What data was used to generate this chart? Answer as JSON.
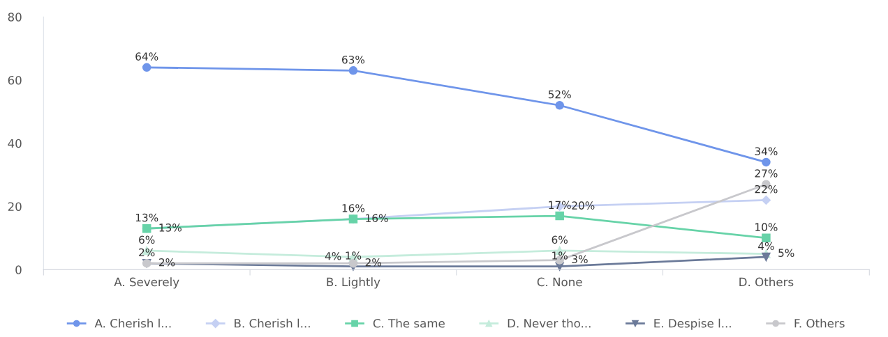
{
  "chart_data": {
    "type": "line",
    "categories": [
      "A. Severely",
      "B. Lightly",
      "C. None",
      "D. Others"
    ],
    "ylim": [
      0,
      80
    ],
    "yticks": [
      0,
      20,
      40,
      60,
      80
    ],
    "grid": false,
    "legend": "bottom",
    "series": [
      {
        "name": "A. Cherish l...",
        "color": "#6f95ea",
        "marker": "circle",
        "values": [
          64,
          63,
          52,
          34
        ],
        "value_labels": [
          "64%",
          "63%",
          "52%",
          "34%"
        ]
      },
      {
        "name": "B. Cherish l...",
        "color": "#c5d0f3",
        "marker": "diamond",
        "values": [
          13,
          16,
          20,
          22
        ],
        "value_labels": [
          "13%",
          "16%",
          "20%",
          "22%"
        ]
      },
      {
        "name": "C. The same",
        "color": "#67d3a8",
        "marker": "square",
        "values": [
          13,
          16,
          17,
          10
        ],
        "value_labels": [
          "13%",
          "16%",
          "17%",
          "10%"
        ]
      },
      {
        "name": "D. Never tho...",
        "color": "#c5ecdc",
        "marker": "triangle",
        "values": [
          6,
          4,
          6,
          5
        ],
        "value_labels": [
          "6%",
          "4%",
          "6%",
          "5%"
        ]
      },
      {
        "name": "E. Despise l...",
        "color": "#6b7a99",
        "marker": "triangle_down",
        "values": [
          2,
          1,
          1,
          4
        ],
        "value_labels": [
          "2%",
          "1%",
          "1%",
          "4%"
        ]
      },
      {
        "name": "F. Others",
        "color": "#c8c8cc",
        "marker": "circle",
        "values": [
          2,
          2,
          3,
          27
        ],
        "value_labels": [
          "2%",
          "2%",
          "3%",
          "27%"
        ]
      }
    ]
  }
}
